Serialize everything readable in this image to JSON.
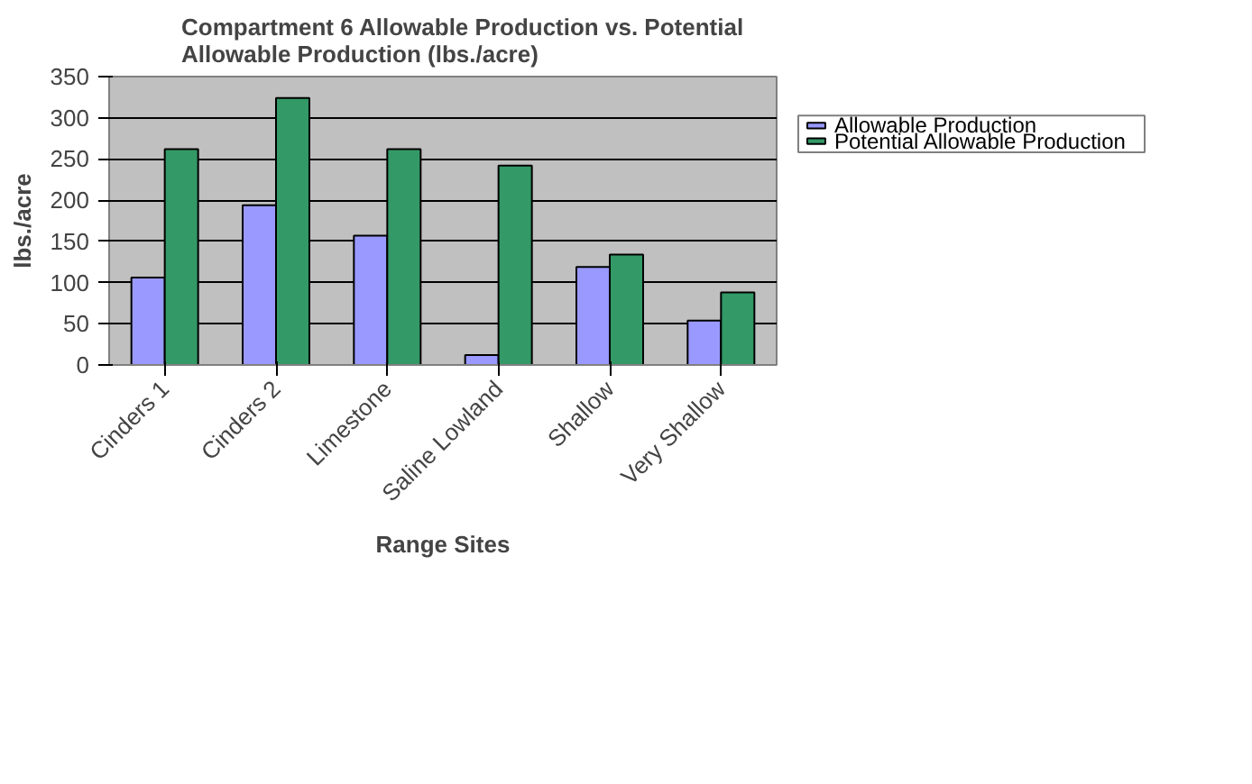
{
  "chart_data": {
    "type": "bar",
    "title": "Compartment 6 Allowable Production vs. Potential\nAllowable Production (lbs./acre)",
    "xlabel": "Range Sites",
    "ylabel": "lbs./acre",
    "categories": [
      "Cinders 1",
      "Cinders 2",
      "Limestone",
      "Saline Lowland",
      "Shallow",
      "Very Shallow"
    ],
    "series": [
      {
        "name": "Allowable Production",
        "color": "#9999ff",
        "values": [
          106,
          194,
          157,
          12,
          119,
          54
        ]
      },
      {
        "name": "Potential Allowable Production",
        "color": "#339966",
        "values": [
          262,
          324,
          262,
          242,
          134,
          88
        ]
      }
    ],
    "ylim": [
      0,
      350
    ],
    "yticks": [
      0,
      50,
      100,
      150,
      200,
      250,
      300,
      350
    ],
    "grid": "y",
    "legend": "right"
  }
}
